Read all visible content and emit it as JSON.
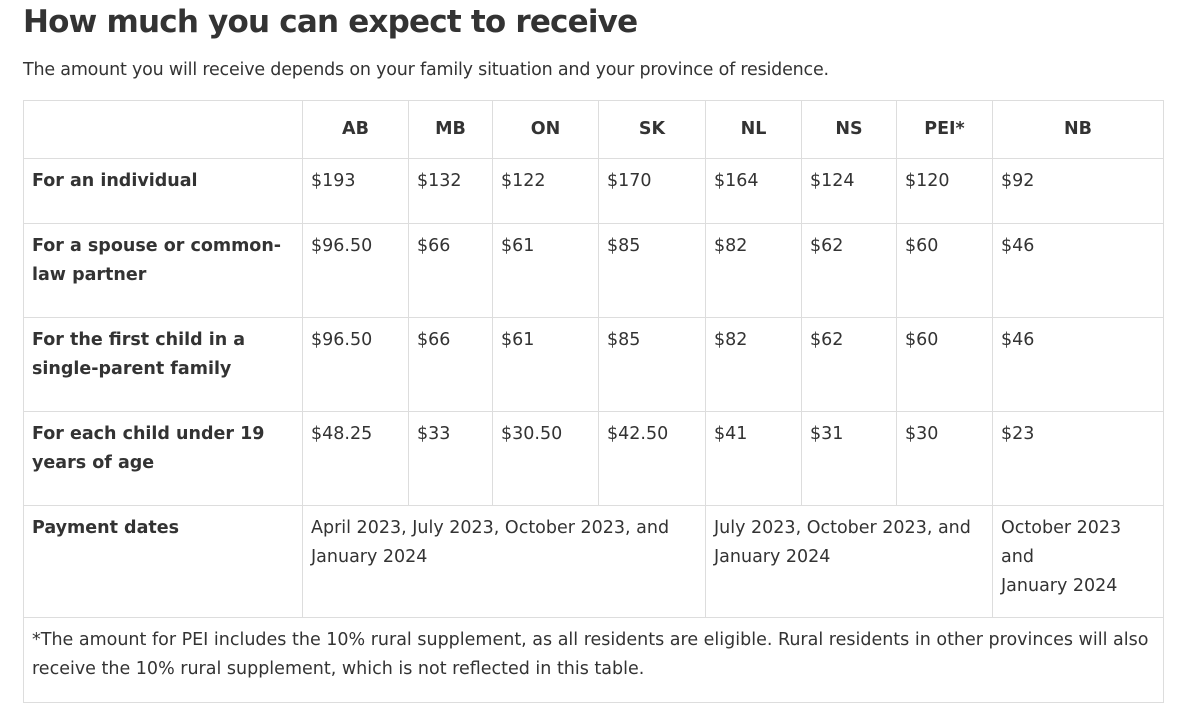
{
  "heading": "How much you can expect to receive",
  "intro": "The amount you will receive depends on your family situation and your province of residence.",
  "table": {
    "columns": [
      "AB",
      "MB",
      "ON",
      "SK",
      "NL",
      "NS",
      "PEI*",
      "NB"
    ],
    "rows": [
      {
        "label": "For an individual",
        "values": [
          "$193",
          "$132",
          "$122",
          "$170",
          "$164",
          "$124",
          "$120",
          "$92"
        ]
      },
      {
        "label": "For a spouse or common-law partner",
        "values": [
          "$96.50",
          "$66",
          "$61",
          "$85",
          "$82",
          "$62",
          "$60",
          "$46"
        ]
      },
      {
        "label": "For the first child in a single-parent family",
        "values": [
          "$96.50",
          "$66",
          "$61",
          "$85",
          "$82",
          "$62",
          "$60",
          "$46"
        ]
      },
      {
        "label": "For each child under 19 years of age",
        "values": [
          "$48.25",
          "$33",
          "$30.50",
          "$42.50",
          "$41",
          "$31",
          "$30",
          "$23"
        ]
      }
    ],
    "payment_dates": {
      "label": "Payment dates",
      "group1": "April 2023, July 2023, October 2023, and January 2024",
      "group2": "July 2023, October 2023, and January 2024",
      "group3_line1": "October 2023",
      "group3_line2": "and",
      "group3_line3": "January 2024"
    },
    "footnote": "*The amount for PEI includes the 10% rural supplement, as all residents are eligible. Rural residents in other provinces will also receive the 10% rural supplement, which is not reflected in this table."
  }
}
